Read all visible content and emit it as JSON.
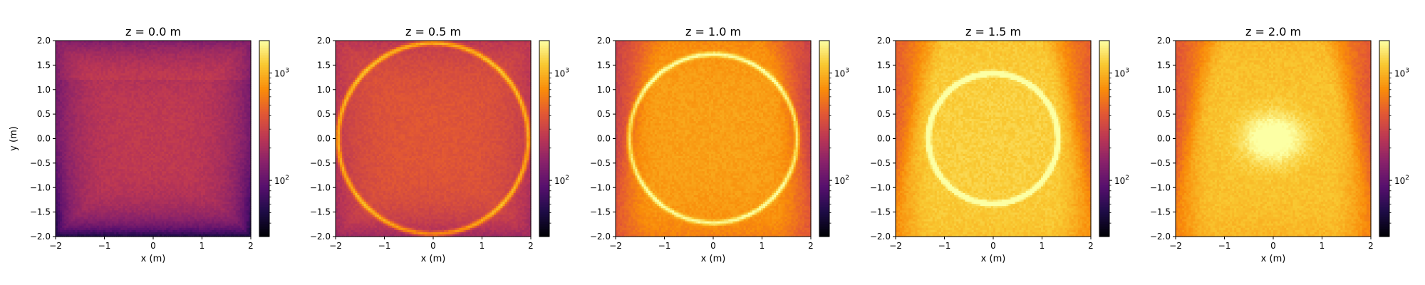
{
  "chart_data": [
    {
      "type": "heatmap",
      "title": "z = 0.0 m",
      "xlabel": "x (m)",
      "ylabel": "y (m)",
      "xlim": [
        -2,
        2
      ],
      "ylim": [
        -2,
        2
      ],
      "x_ticks": [
        "−2",
        "−1",
        "0",
        "1",
        "2"
      ],
      "y_ticks": [
        "−2.0",
        "−1.5",
        "−1.0",
        "−0.5",
        "0.0",
        "0.5",
        "1.0",
        "1.5",
        "2.0"
      ],
      "colorbar": {
        "scale": "log",
        "colormap": "inferno",
        "range": [
          30,
          2000
        ],
        "ticks": [
          100,
          1000
        ]
      },
      "field": {
        "base": 260,
        "ring_radius": 0,
        "ring_amp": 0,
        "cone_amp": 0,
        "blob_amp": 0,
        "corner_dim": 0.55,
        "top_tint": 1.15
      }
    },
    {
      "type": "heatmap",
      "title": "z = 0.5 m",
      "xlabel": "x (m)",
      "ylabel": "",
      "xlim": [
        -2,
        2
      ],
      "ylim": [
        -2,
        2
      ],
      "x_ticks": [
        "−2",
        "−1",
        "0",
        "1",
        "2"
      ],
      "y_ticks": [
        "−2.0",
        "−1.5",
        "−1.0",
        "−0.5",
        "0.0",
        "0.5",
        "1.0",
        "1.5",
        "2.0"
      ],
      "colorbar": {
        "scale": "log",
        "colormap": "inferno",
        "range": [
          30,
          2000
        ],
        "ticks": [
          100,
          1000
        ]
      },
      "field": {
        "base": 380,
        "ring_radius": 1.95,
        "ring_amp": 900,
        "cone_amp": 0,
        "blob_amp": 0,
        "corner_dim": 0.35,
        "top_tint": 1.0
      }
    },
    {
      "type": "heatmap",
      "title": "z = 1.0 m",
      "xlabel": "x (m)",
      "ylabel": "",
      "xlim": [
        -2,
        2
      ],
      "ylim": [
        -2,
        2
      ],
      "x_ticks": [
        "−2",
        "−1",
        "0",
        "1",
        "2"
      ],
      "y_ticks": [
        "−2.0",
        "−1.5",
        "−1.0",
        "−0.5",
        "0.0",
        "0.5",
        "1.0",
        "1.5",
        "2.0"
      ],
      "colorbar": {
        "scale": "log",
        "colormap": "inferno",
        "range": [
          30,
          2000
        ],
        "ticks": [
          100,
          1000
        ]
      },
      "field": {
        "base": 560,
        "ring_radius": 1.72,
        "ring_amp": 1400,
        "cone_amp": 250,
        "blob_amp": 0,
        "corner_dim": 0.15,
        "top_tint": 1.0
      }
    },
    {
      "type": "heatmap",
      "title": "z = 1.5 m",
      "xlabel": "x (m)",
      "ylabel": "",
      "xlim": [
        -2,
        2
      ],
      "ylim": [
        -2,
        2
      ],
      "x_ticks": [
        "−2",
        "−1",
        "0",
        "1",
        "2"
      ],
      "y_ticks": [
        "−2.0",
        "−1.5",
        "−1.0",
        "−0.5",
        "0.0",
        "0.5",
        "1.0",
        "1.5",
        "2.0"
      ],
      "colorbar": {
        "scale": "log",
        "colormap": "inferno",
        "range": [
          30,
          2000
        ],
        "ticks": [
          100,
          1000
        ]
      },
      "field": {
        "base": 750,
        "ring_radius": 1.33,
        "ring_amp": 2200,
        "cone_amp": 500,
        "blob_amp": 0,
        "corner_dim": 0.06,
        "top_tint": 1.0
      }
    },
    {
      "type": "heatmap",
      "title": "z = 2.0 m",
      "xlabel": "x (m)",
      "ylabel": "",
      "xlim": [
        -2,
        2
      ],
      "ylim": [
        -2,
        2
      ],
      "x_ticks": [
        "−2",
        "−1",
        "0",
        "1",
        "2"
      ],
      "y_ticks": [
        "−2.0",
        "−1.5",
        "−1.0",
        "−0.5",
        "0.0",
        "0.5",
        "1.0",
        "1.5",
        "2.0"
      ],
      "colorbar": {
        "scale": "log",
        "colormap": "inferno",
        "range": [
          30,
          2000
        ],
        "ticks": [
          100,
          1000
        ]
      },
      "field": {
        "base": 700,
        "ring_radius": 0,
        "ring_amp": 0,
        "cone_amp": 450,
        "blob_amp": 1400,
        "corner_dim": 0.08,
        "top_tint": 1.0
      }
    }
  ]
}
